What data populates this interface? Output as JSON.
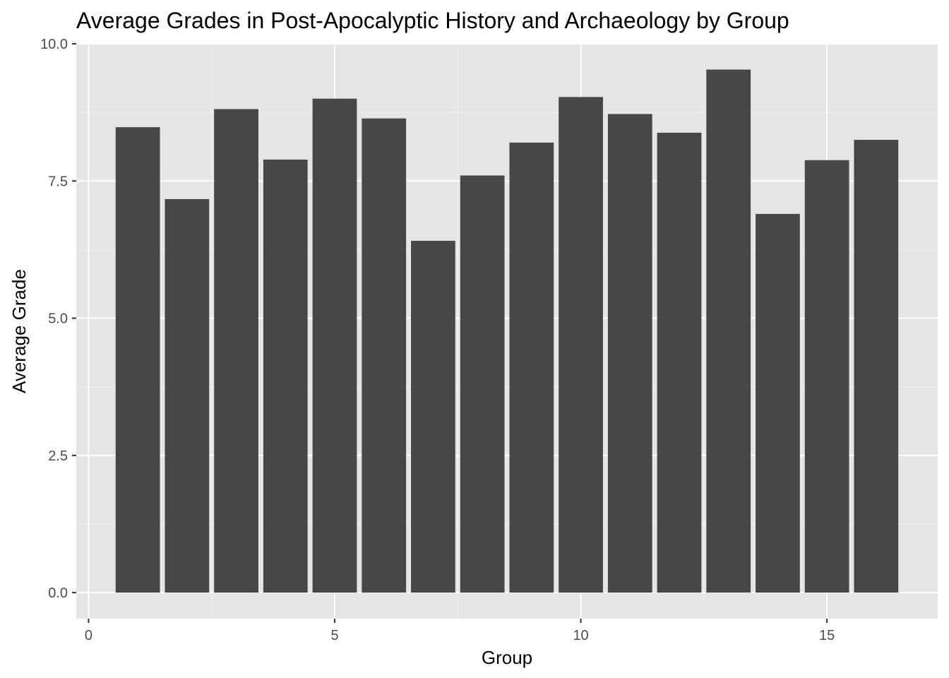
{
  "chart_data": {
    "type": "bar",
    "title": "Average Grades in Post-Apocalyptic History and Archaeology by Group",
    "xlabel": "Group",
    "ylabel": "Average Grade",
    "x": [
      1,
      2,
      3,
      4,
      5,
      6,
      7,
      8,
      9,
      10,
      11,
      12,
      13,
      14,
      15,
      16
    ],
    "values": [
      8.48,
      7.17,
      8.81,
      7.89,
      9.0,
      8.64,
      6.41,
      7.6,
      8.2,
      9.03,
      8.72,
      8.38,
      9.53,
      6.9,
      7.88,
      8.25
    ],
    "xlim": [
      -0.25,
      17.25
    ],
    "ylim": [
      -0.475,
      10.0
    ],
    "xticks": [
      0,
      5,
      10,
      15
    ],
    "yticks": [
      0.0,
      2.5,
      5.0,
      7.5,
      10.0
    ],
    "xtick_labels": [
      "0",
      "5",
      "10",
      "15"
    ],
    "ytick_labels": [
      "0.0",
      "2.5",
      "5.0",
      "7.5",
      "10.0"
    ],
    "grid": true,
    "colors": {
      "bar": "#474747",
      "panel": "#e5e5e5",
      "grid_major": "#ffffff",
      "grid_minor": "#f2f2f2"
    }
  }
}
